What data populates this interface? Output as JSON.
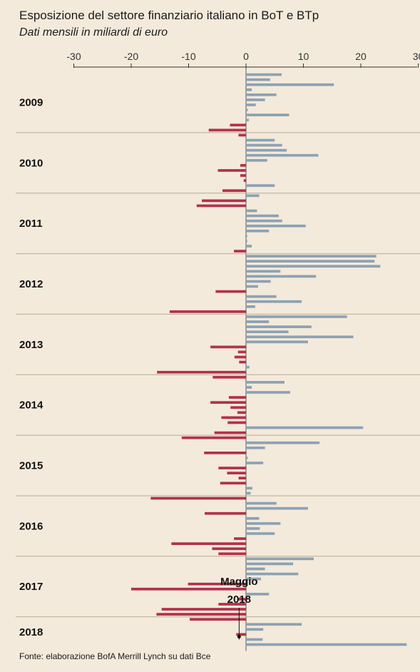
{
  "title": "Esposizione del settore finanziario italiano in BoT e BTp",
  "subtitle": "Dati mensili in miliardi di euro",
  "source": "Fonte: elaborazione BofA Merrill Lynch su dati Bce",
  "colors": {
    "positive": "#8da1b3",
    "negative": "#b3304d",
    "axis": "#333333",
    "grid": "#b8ab98",
    "background": "#f3eadb"
  },
  "chart_data": {
    "type": "bar",
    "orientation": "horizontal",
    "title": "Esposizione del settore finanziario italiano in BoT e BTp",
    "subtitle": "Dati mensili in miliardi di euro",
    "xlim": [
      -30,
      30
    ],
    "x_ticks": [
      -30,
      -20,
      -10,
      0,
      10,
      20,
      30
    ],
    "x_tick_labels": [
      "-30",
      "-20",
      "-10",
      "0",
      "10",
      "20",
      "30"
    ],
    "grid": "horizontal separators between years",
    "annotation": {
      "line1": "Maggio",
      "line2": "2018",
      "year": "2018",
      "month_index": 4
    },
    "years": [
      {
        "label": "2009",
        "values": [
          6.2,
          4.2,
          15.3,
          1.0,
          5.3,
          3.3,
          1.7,
          0.3,
          7.5,
          0.5,
          -2.8,
          -6.5
        ]
      },
      {
        "label": "2010",
        "values": [
          -1.3,
          5.0,
          6.3,
          7.1,
          12.6,
          3.7,
          -1.0,
          -4.9,
          -1.0,
          -0.4,
          5.0,
          -4.1
        ]
      },
      {
        "label": "2011",
        "values": [
          2.3,
          -7.7,
          -8.6,
          1.9,
          5.7,
          6.3,
          10.4,
          4.0,
          0.2,
          0.2,
          1.0,
          -2.1
        ]
      },
      {
        "label": "2012",
        "values": [
          22.7,
          22.4,
          23.4,
          6.0,
          12.2,
          4.3,
          2.1,
          -5.3,
          5.3,
          9.7,
          1.6,
          -13.3
        ]
      },
      {
        "label": "2013",
        "values": [
          17.6,
          4.0,
          11.4,
          7.4,
          18.7,
          10.8,
          -6.2,
          -1.4,
          -2.0,
          -1.2,
          0.6,
          -15.5
        ]
      },
      {
        "label": "2014",
        "values": [
          -5.8,
          6.7,
          1.0,
          7.7,
          -3.0,
          -6.2,
          -2.7,
          -1.5,
          -4.3,
          -3.2,
          20.4,
          -5.5
        ]
      },
      {
        "label": "2015",
        "values": [
          -11.2,
          12.8,
          3.3,
          -7.3,
          0.3,
          3.0,
          -4.8,
          -3.3,
          -1.3,
          -4.5,
          1.1,
          0.8
        ]
      },
      {
        "label": "2016",
        "values": [
          -16.6,
          5.3,
          10.8,
          -7.2,
          2.3,
          6.0,
          2.4,
          5.0,
          -2.1,
          -13.0,
          -5.9,
          -4.8
        ]
      },
      {
        "label": "2017",
        "values": [
          11.8,
          8.2,
          3.3,
          9.1,
          2.6,
          -10.1,
          -20.0,
          4.0,
          -1.5,
          -4.8,
          -14.7,
          -15.6
        ]
      },
      {
        "label": "2018",
        "values": [
          -9.8,
          9.7,
          3.0,
          -1.7,
          2.9,
          28.0
        ]
      }
    ]
  }
}
